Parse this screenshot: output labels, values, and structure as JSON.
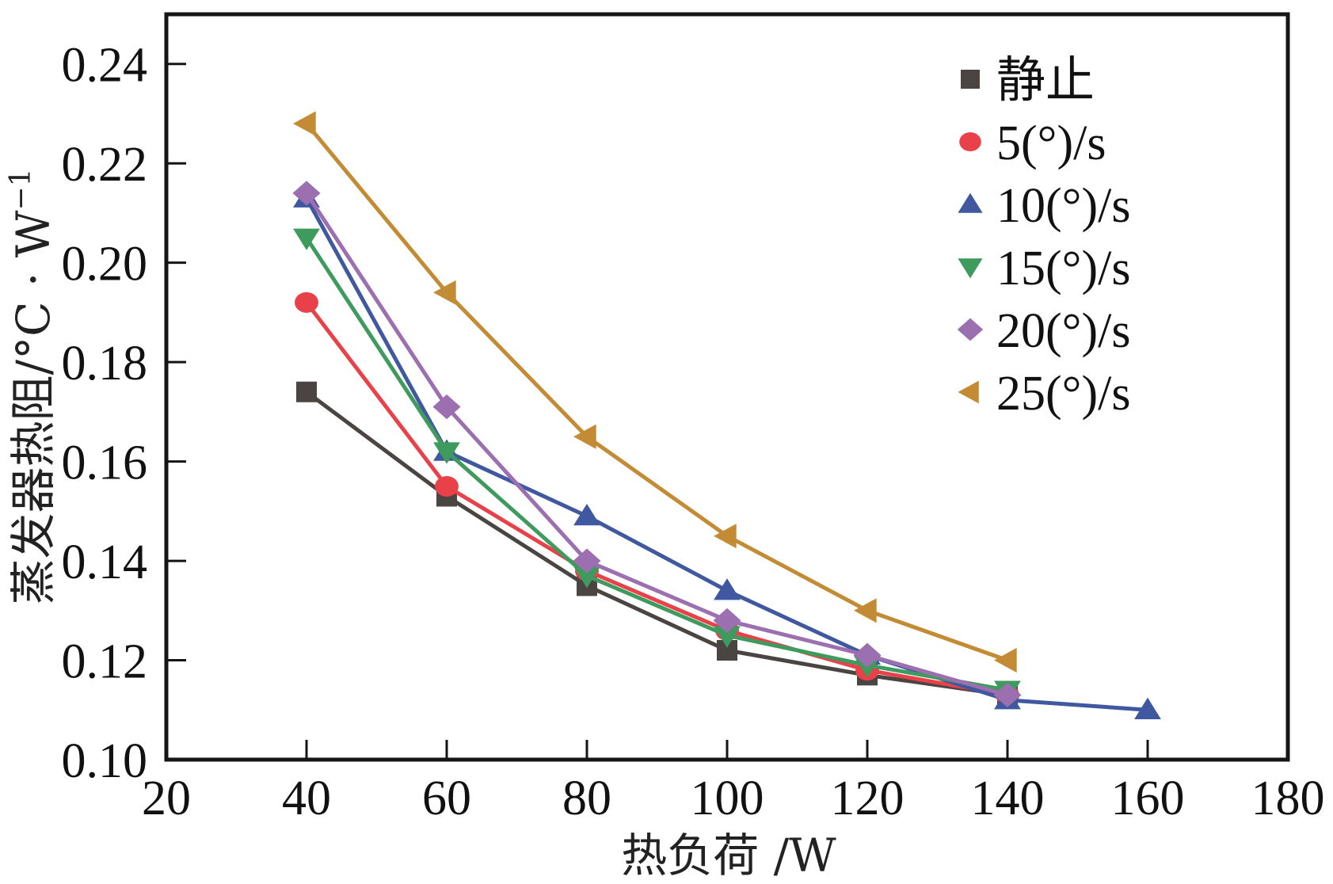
{
  "chart_data": {
    "type": "line",
    "title": "",
    "xlabel": "热负荷 /W",
    "ylabel": "蒸发器热阻/°C · W",
    "ylabel_superscript": "−1",
    "xlim": [
      20,
      180
    ],
    "ylim": [
      0.1,
      0.25
    ],
    "xticks": [
      20,
      40,
      60,
      80,
      100,
      120,
      140,
      160,
      180
    ],
    "xtick_labels": [
      "20",
      "40",
      "60",
      "80",
      "100",
      "120",
      "140",
      "160",
      "180"
    ],
    "yticks": [
      0.1,
      0.12,
      0.14,
      0.16,
      0.18,
      0.2,
      0.22,
      0.24
    ],
    "ytick_labels": [
      "0.10",
      "0.12",
      "0.14",
      "0.16",
      "0.18",
      "0.20",
      "0.22",
      "0.24"
    ],
    "grid": false,
    "legend_position": "top-right",
    "series": [
      {
        "name": "静止",
        "marker": "square",
        "color": "#4A4442",
        "x": [
          40,
          60,
          80,
          100,
          120,
          140
        ],
        "values": [
          0.174,
          0.153,
          0.135,
          0.122,
          0.117,
          0.113
        ]
      },
      {
        "name": "5(°)/s",
        "marker": "circle",
        "color": "#E8414A",
        "x": [
          40,
          60,
          80,
          100,
          120,
          140
        ],
        "values": [
          0.192,
          0.155,
          0.138,
          0.126,
          0.118,
          0.113
        ]
      },
      {
        "name": "10(°)/s",
        "marker": "triangle-up",
        "color": "#3F58A0",
        "x": [
          40,
          60,
          80,
          100,
          120,
          140,
          160
        ],
        "values": [
          0.213,
          0.162,
          0.149,
          0.134,
          0.121,
          0.112,
          0.11
        ]
      },
      {
        "name": "15(°)/s",
        "marker": "triangle-down",
        "color": "#3F9A5E",
        "x": [
          40,
          60,
          80,
          100,
          120,
          140
        ],
        "values": [
          0.205,
          0.162,
          0.137,
          0.125,
          0.119,
          0.114
        ]
      },
      {
        "name": "20(°)/s",
        "marker": "diamond",
        "color": "#9B6FB0",
        "x": [
          40,
          60,
          80,
          100,
          120,
          140
        ],
        "values": [
          0.214,
          0.171,
          0.14,
          0.128,
          0.121,
          0.113
        ]
      },
      {
        "name": "25(°)/s",
        "marker": "triangle-left",
        "color": "#C48B35",
        "x": [
          40,
          60,
          80,
          100,
          120,
          140
        ],
        "values": [
          0.228,
          0.194,
          0.165,
          0.145,
          0.13,
          0.12
        ]
      }
    ]
  }
}
